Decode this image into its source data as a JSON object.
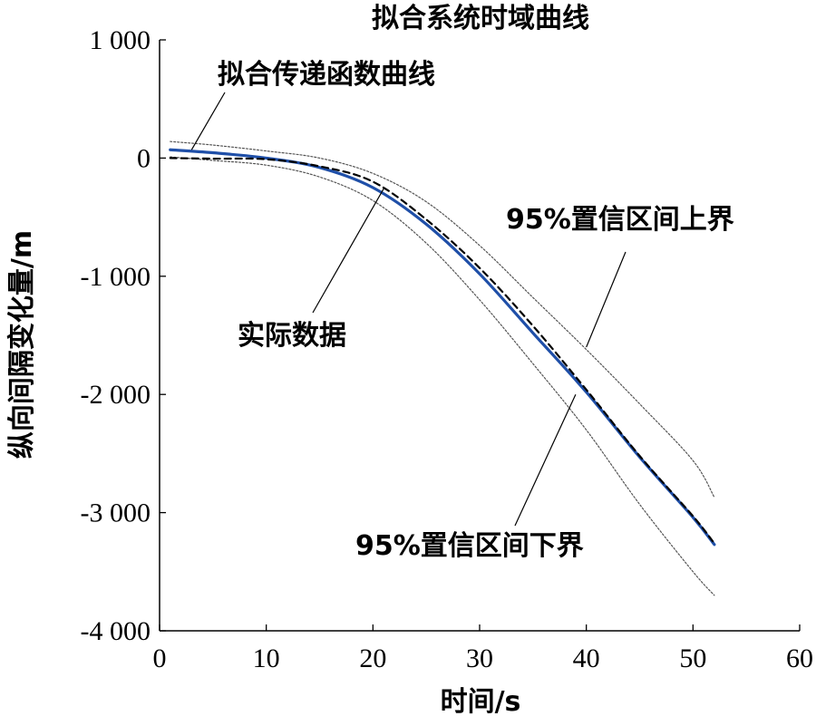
{
  "chart_data": {
    "type": "line",
    "title": "拟合系统时域曲线",
    "xlabel": "时间/s",
    "ylabel": "纵向间隔变化量/m",
    "xlim": [
      0,
      60
    ],
    "ylim": [
      -4000,
      1000
    ],
    "x_ticks": [
      0,
      10,
      20,
      30,
      40,
      50,
      60
    ],
    "y_ticks": [
      1000,
      0,
      -1000,
      -2000,
      -3000,
      -4000
    ],
    "x_tick_labels": [
      "0",
      "10",
      "20",
      "30",
      "40",
      "50",
      "60"
    ],
    "y_tick_labels": [
      "1 000",
      "0",
      "-1 000",
      "-2 000",
      "-3 000",
      "-4 000"
    ],
    "grid": false,
    "x": [
      1,
      5,
      10,
      15,
      20,
      25,
      30,
      35,
      40,
      45,
      50,
      52
    ],
    "series": [
      {
        "name": "拟合传递函数曲线",
        "color": "#1f4fa8",
        "style": "solid",
        "values": [
          70,
          45,
          0,
          -80,
          -250,
          -560,
          -980,
          -1480,
          -1980,
          -2530,
          -3040,
          -3270
        ]
      },
      {
        "name": "实际数据",
        "color": "#000000",
        "style": "dashed",
        "values": [
          0,
          -5,
          -10,
          -70,
          -200,
          -520,
          -930,
          -1420,
          -1960,
          -2520,
          -3030,
          -3260
        ]
      },
      {
        "name": "95%置信区间上界",
        "color": "#555555",
        "style": "dotted",
        "values": [
          140,
          110,
          60,
          0,
          -130,
          -370,
          -740,
          -1180,
          -1620,
          -2080,
          -2560,
          -2870
        ]
      },
      {
        "name": "95%置信区间下界",
        "color": "#555555",
        "style": "dotted",
        "values": [
          10,
          -20,
          -60,
          -160,
          -360,
          -720,
          -1200,
          -1740,
          -2300,
          -2930,
          -3500,
          -3700
        ]
      }
    ],
    "annotations": [
      {
        "text": "拟合传递函数曲线",
        "series": 0,
        "x": 3,
        "y": 70
      },
      {
        "text": "实际数据",
        "series": 1,
        "x": 21,
        "y": -260
      },
      {
        "text": "95%置信区间上界",
        "series": 2,
        "x": 40,
        "y": -1600
      },
      {
        "text": "95%置信区间下界",
        "series": 3,
        "x": 39,
        "y": -2000
      }
    ]
  }
}
